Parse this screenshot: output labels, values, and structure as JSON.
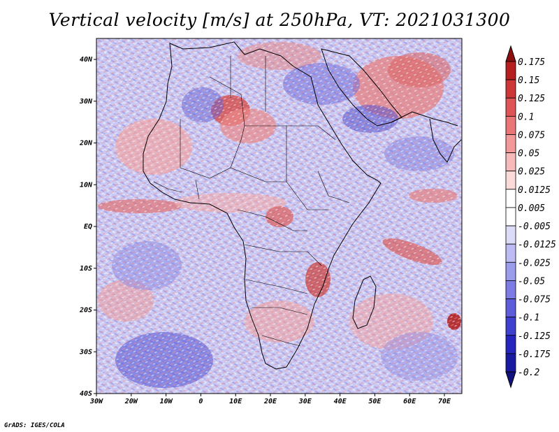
{
  "title": "Vertical velocity [m/s] at 250hPa, VT: 2021031300",
  "credit": "GrADS: IGES/COLA",
  "map": {
    "region": "Africa",
    "lon_range": [
      -30,
      75
    ],
    "lat_range": [
      -40,
      45
    ],
    "lat_ticks": [
      "40N",
      "30N",
      "20N",
      "10N",
      "EQ",
      "10S",
      "20S",
      "30S",
      "40S"
    ],
    "lon_ticks": [
      "30W",
      "20W",
      "10W",
      "0",
      "10E",
      "20E",
      "30E",
      "40E",
      "50E",
      "60E",
      "70E"
    ]
  },
  "colorbar": {
    "levels": [
      "0.175",
      "0.15",
      "0.125",
      "0.1",
      "0.075",
      "0.05",
      "0.025",
      "0.0125",
      "0.005",
      "-0.005",
      "-0.0125",
      "-0.025",
      "-0.05",
      "-0.075",
      "-0.1",
      "-0.125",
      "-0.175",
      "-0.2"
    ],
    "colors": [
      "#8b0f0f",
      "#b51f1f",
      "#cd3737",
      "#df5555",
      "#eb7676",
      "#f39999",
      "#f7baba",
      "#fbdada",
      "#ffffff",
      "#ffffff",
      "#dcdcf8",
      "#bcbcf2",
      "#9c9cec",
      "#7c7ce4",
      "#5d5ddb",
      "#4040cf",
      "#2626bf",
      "#1a1aa0",
      "#12127e"
    ]
  }
}
